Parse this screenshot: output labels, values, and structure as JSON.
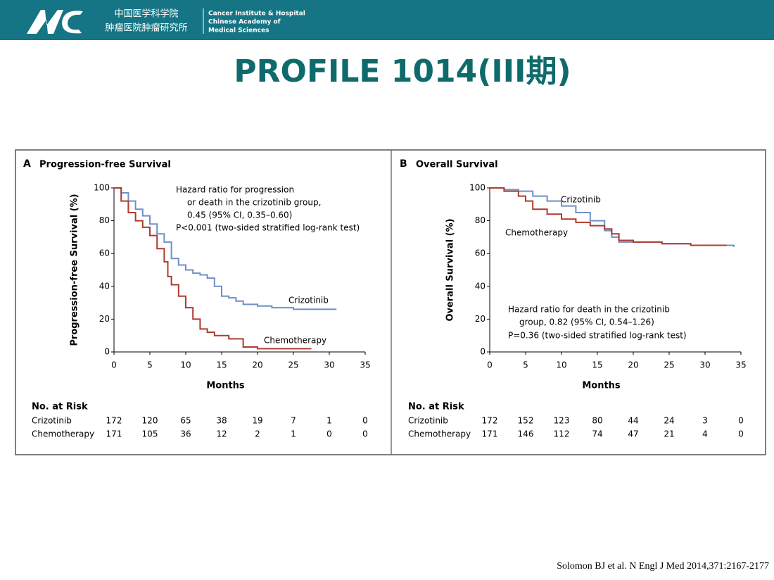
{
  "header": {
    "cn": [
      "中国医学科学院",
      "肿瘤医院肿瘤研究所"
    ],
    "en": [
      "Cancer Institute & Hospital",
      "Chinese Academy of",
      "Medical Sciences"
    ]
  },
  "title": "PROFILE 1014(III期)",
  "citation": "Solomon BJ et al. N Engl J Med 2014,371:2167-2177",
  "chart_data": [
    {
      "type": "line",
      "step": true,
      "panel": "A",
      "title": "Progression-free Survival",
      "xlabel": "Months",
      "ylabel": "Progression-free Survival (%)",
      "xlim": [
        0,
        35
      ],
      "xticks": [
        0,
        5,
        10,
        15,
        20,
        25,
        30,
        35
      ],
      "ylim": [
        0,
        100
      ],
      "yticks": [
        0,
        20,
        40,
        60,
        80,
        100
      ],
      "annotation": [
        "Hazard ratio for progression",
        "or death in the crizotinib group,",
        "0.45 (95% CI, 0.35–0.60)",
        "P<0.001 (two-sided stratified log-rank test)"
      ],
      "series": [
        {
          "name": "Crizotinib",
          "color": "#6f8fc8",
          "x": [
            0,
            1,
            2,
            3,
            4,
            5,
            6,
            7,
            8,
            9,
            10,
            11,
            12,
            13,
            14,
            15,
            16,
            17,
            18,
            20,
            22,
            25,
            28,
            31
          ],
          "values": [
            100,
            97,
            92,
            87,
            83,
            78,
            72,
            67,
            57,
            53,
            50,
            48,
            47,
            45,
            40,
            34,
            33,
            31,
            29,
            28,
            27,
            26,
            26,
            26
          ]
        },
        {
          "name": "Chemotherapy",
          "color": "#b03a2e",
          "x": [
            0,
            1,
            2,
            3,
            4,
            5,
            6,
            7,
            7.5,
            8,
            9,
            10,
            11,
            12,
            13,
            14,
            16,
            18,
            20,
            27.5
          ],
          "values": [
            100,
            92,
            85,
            80,
            76,
            71,
            63,
            55,
            46,
            41,
            34,
            27,
            20,
            14,
            12,
            10,
            8,
            3,
            2,
            2
          ]
        }
      ],
      "risk_table": {
        "title": "No. at Risk",
        "rows": [
          {
            "name": "Crizotinib",
            "values": [
              172,
              120,
              65,
              38,
              19,
              7,
              1,
              0
            ]
          },
          {
            "name": "Chemotherapy",
            "values": [
              171,
              105,
              36,
              12,
              2,
              1,
              0,
              0
            ]
          }
        ]
      }
    },
    {
      "type": "line",
      "step": true,
      "panel": "B",
      "title": "Overall Survival",
      "xlabel": "Months",
      "ylabel": "Overall Survival (%)",
      "xlim": [
        0,
        35
      ],
      "xticks": [
        0,
        5,
        10,
        15,
        20,
        25,
        30,
        35
      ],
      "ylim": [
        0,
        100
      ],
      "yticks": [
        0,
        20,
        40,
        60,
        80,
        100
      ],
      "annotation": [
        "Hazard ratio for death in the crizotinib",
        "group, 0.82 (95% CI, 0.54–1.26)",
        "P=0.36 (two-sided stratified log-rank test)"
      ],
      "series": [
        {
          "name": "Crizotinib",
          "color": "#6f8fc8",
          "x": [
            0,
            2,
            4,
            6,
            8,
            10,
            12,
            14,
            16,
            17,
            18,
            20,
            24,
            28,
            30,
            34
          ],
          "values": [
            100,
            99,
            98,
            95,
            92,
            89,
            85,
            80,
            74,
            70,
            67,
            67,
            66,
            65,
            65,
            64
          ]
        },
        {
          "name": "Chemotherapy",
          "color": "#b03a2e",
          "x": [
            0,
            2,
            4,
            5,
            6,
            8,
            10,
            12,
            14,
            16,
            17,
            18,
            20,
            24,
            28,
            30,
            33
          ],
          "values": [
            100,
            98,
            95,
            92,
            87,
            84,
            81,
            79,
            77,
            75,
            72,
            68,
            67,
            66,
            65,
            65,
            65
          ]
        }
      ],
      "risk_table": {
        "title": "No. at Risk",
        "rows": [
          {
            "name": "Crizotinib",
            "values": [
              172,
              152,
              123,
              80,
              44,
              24,
              3,
              0
            ]
          },
          {
            "name": "Chemotherapy",
            "values": [
              171,
              146,
              112,
              74,
              47,
              21,
              4,
              0
            ]
          }
        ]
      }
    }
  ]
}
